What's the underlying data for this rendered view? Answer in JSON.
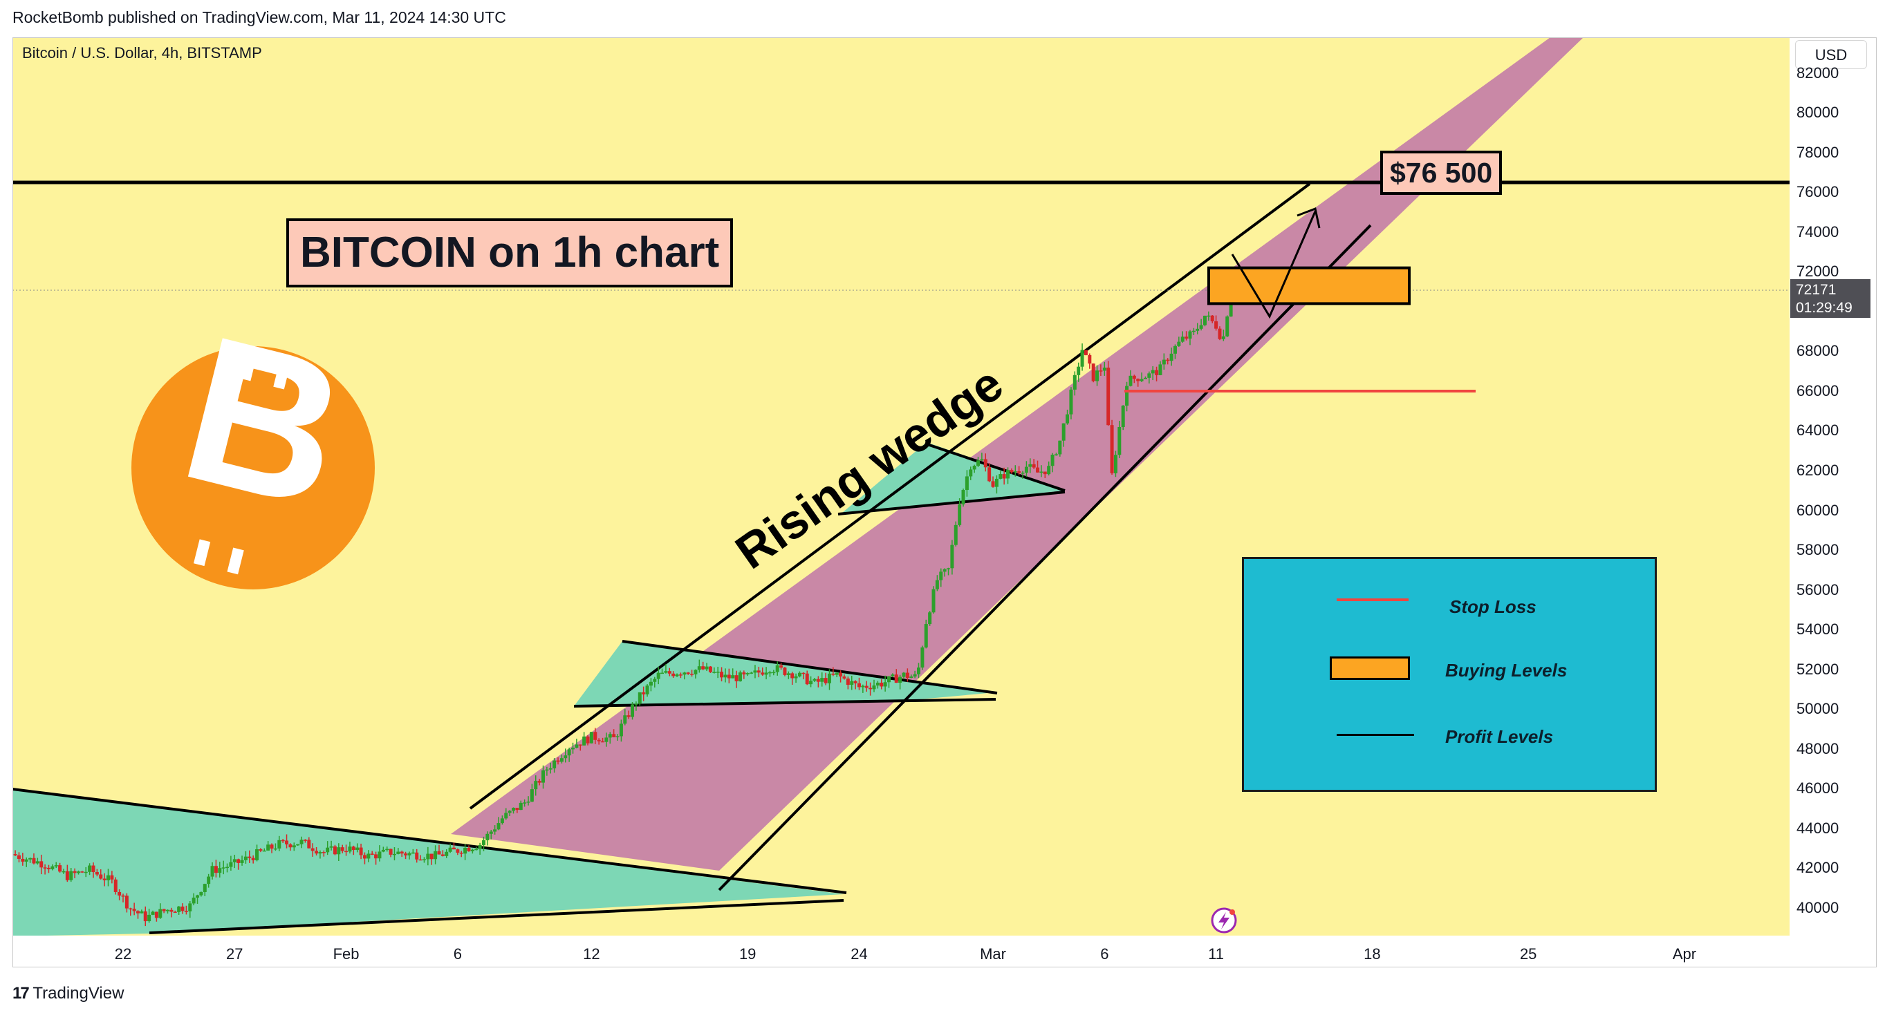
{
  "header": {
    "published_by": "RocketBomb published on TradingView.com, Mar 11, 2024 14:30 UTC"
  },
  "chart_title": {
    "symbol": "Bitcoin / U.S. Dollar, 4h, BITSTAMP",
    "currency_button": "USD"
  },
  "annotations": {
    "title": "BITCOIN on 1h chart",
    "target": "$76 500",
    "pattern": "Rising wedge"
  },
  "legend": {
    "stop_loss": "Stop Loss",
    "buying_levels": "Buying Levels",
    "profit_levels": "Profit Levels"
  },
  "last_price": {
    "value": "72171",
    "countdown": "01:29:49"
  },
  "footer": {
    "brand": "TradingView"
  },
  "colors": {
    "background": "#fdf39c",
    "channel": "#c988a6",
    "triangle": "#7dd7b5",
    "stop_loss": "#f0453f",
    "buying_zone": "#fca522",
    "legend_bg": "#1ebbd1",
    "bitcoin_orange": "#f7931a",
    "candle_up": "#2ca02c",
    "candle_down": "#d62728"
  },
  "icons": {
    "logo": "bitcoin-logo-icon",
    "brand": "tradingview-logo-icon",
    "alert": "lightning-icon"
  },
  "chart_data": {
    "type": "candlestick",
    "timeframe": "4h",
    "y_ticks": [
      40000,
      42000,
      44000,
      46000,
      48000,
      50000,
      52000,
      54000,
      56000,
      58000,
      60000,
      62000,
      64000,
      66000,
      68000,
      70000,
      72000,
      74000,
      76000,
      78000,
      80000,
      82000
    ],
    "y_tick_labels": [
      "40000",
      "42000",
      "44000",
      "46000",
      "48000",
      "50000",
      "52000",
      "54000",
      "56000",
      "58000",
      "60000",
      "62000",
      "64000",
      "66000",
      "68000",
      "70000",
      "72000",
      "74000",
      "76000",
      "78000",
      "80000",
      "82000"
    ],
    "ylim": [
      38600,
      83800
    ],
    "x_ticks": [
      {
        "label": "22",
        "day": 22
      },
      {
        "label": "27",
        "day": 27
      },
      {
        "label": "Feb",
        "day": 32
      },
      {
        "label": "6",
        "day": 37
      },
      {
        "label": "12",
        "day": 43
      },
      {
        "label": "19",
        "day": 50
      },
      {
        "label": "24",
        "day": 55
      },
      {
        "label": "Mar",
        "day": 61
      },
      {
        "label": "6",
        "day": 66
      },
      {
        "label": "11",
        "day": 71
      },
      {
        "label": "18",
        "day": 78
      },
      {
        "label": "25",
        "day": 85
      },
      {
        "label": "Apr",
        "day": 92
      }
    ],
    "price_path": [
      {
        "day": 17.0,
        "price": 42700
      },
      {
        "day": 18.5,
        "price": 42200
      },
      {
        "day": 19.5,
        "price": 41600
      },
      {
        "day": 20.5,
        "price": 41900
      },
      {
        "day": 21.5,
        "price": 41300
      },
      {
        "day": 22.3,
        "price": 40000
      },
      {
        "day": 23.0,
        "price": 39500
      },
      {
        "day": 24.0,
        "price": 39900
      },
      {
        "day": 25.0,
        "price": 40100
      },
      {
        "day": 26.0,
        "price": 41900
      },
      {
        "day": 27.0,
        "price": 42200
      },
      {
        "day": 28.0,
        "price": 42700
      },
      {
        "day": 29.0,
        "price": 43200
      },
      {
        "day": 30.0,
        "price": 43300
      },
      {
        "day": 31.0,
        "price": 42800
      },
      {
        "day": 32.0,
        "price": 43000
      },
      {
        "day": 33.0,
        "price": 42600
      },
      {
        "day": 34.0,
        "price": 42800
      },
      {
        "day": 35.0,
        "price": 42700
      },
      {
        "day": 36.0,
        "price": 42600
      },
      {
        "day": 37.0,
        "price": 42900
      },
      {
        "day": 38.0,
        "price": 43200
      },
      {
        "day": 39.0,
        "price": 44500
      },
      {
        "day": 40.0,
        "price": 45300
      },
      {
        "day": 41.0,
        "price": 47000
      },
      {
        "day": 42.0,
        "price": 48100
      },
      {
        "day": 43.0,
        "price": 48600
      },
      {
        "day": 44.0,
        "price": 48500
      },
      {
        "day": 45.0,
        "price": 50400
      },
      {
        "day": 46.0,
        "price": 51700
      },
      {
        "day": 47.0,
        "price": 51900
      },
      {
        "day": 48.0,
        "price": 52000
      },
      {
        "day": 49.0,
        "price": 51600
      },
      {
        "day": 50.0,
        "price": 51600
      },
      {
        "day": 51.0,
        "price": 52100
      },
      {
        "day": 52.0,
        "price": 51800
      },
      {
        "day": 53.0,
        "price": 51300
      },
      {
        "day": 54.0,
        "price": 51700
      },
      {
        "day": 55.0,
        "price": 51100
      },
      {
        "day": 56.0,
        "price": 51300
      },
      {
        "day": 57.0,
        "price": 51700
      },
      {
        "day": 57.6,
        "price": 51600
      },
      {
        "day": 58.0,
        "price": 54400
      },
      {
        "day": 58.5,
        "price": 56500
      },
      {
        "day": 59.0,
        "price": 57000
      },
      {
        "day": 59.5,
        "price": 60500
      },
      {
        "day": 60.0,
        "price": 62300
      },
      {
        "day": 60.5,
        "price": 62500
      },
      {
        "day": 61.0,
        "price": 61300
      },
      {
        "day": 61.5,
        "price": 61800
      },
      {
        "day": 62.0,
        "price": 62000
      },
      {
        "day": 62.5,
        "price": 62200
      },
      {
        "day": 63.0,
        "price": 61900
      },
      {
        "day": 63.5,
        "price": 62100
      },
      {
        "day": 64.0,
        "price": 63500
      },
      {
        "day": 64.6,
        "price": 66300
      },
      {
        "day": 65.0,
        "price": 68100
      },
      {
        "day": 65.5,
        "price": 66700
      },
      {
        "day": 66.0,
        "price": 67300
      },
      {
        "day": 66.3,
        "price": 61500
      },
      {
        "day": 66.6,
        "price": 63700
      },
      {
        "day": 67.0,
        "price": 66500
      },
      {
        "day": 67.5,
        "price": 66700
      },
      {
        "day": 68.0,
        "price": 66800
      },
      {
        "day": 68.5,
        "price": 67100
      },
      {
        "day": 69.0,
        "price": 68000
      },
      {
        "day": 69.5,
        "price": 68600
      },
      {
        "day": 70.0,
        "price": 68900
      },
      {
        "day": 70.5,
        "price": 69800
      },
      {
        "day": 71.0,
        "price": 69300
      },
      {
        "day": 71.3,
        "price": 68500
      },
      {
        "day": 71.7,
        "price": 71400
      },
      {
        "day": 72.0,
        "price": 72171
      }
    ],
    "levels": {
      "target": 76500,
      "stop_loss": 66000,
      "buying_zone": [
        70400,
        72200
      ],
      "last": 72171
    }
  }
}
